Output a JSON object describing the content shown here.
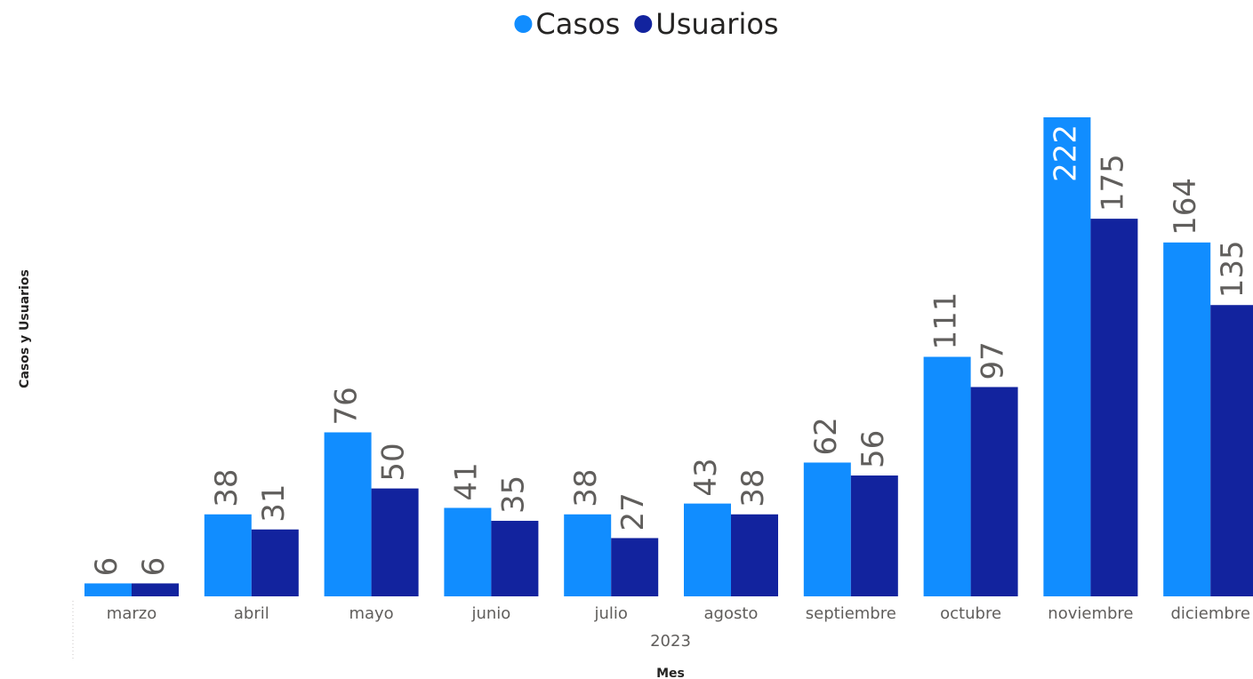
{
  "chart_data": {
    "type": "bar",
    "legend": "top",
    "categories": [
      "marzo",
      "abril",
      "mayo",
      "junio",
      "julio",
      "agosto",
      "septiembre",
      "octubre",
      "noviembre",
      "diciembre"
    ],
    "group_label": "2023",
    "x_label": "Mes",
    "y_label": "Casos y Usuarios",
    "series": [
      {
        "name": "Casos",
        "color": "#118dff",
        "values": [
          6,
          38,
          76,
          41,
          38,
          43,
          62,
          111,
          222,
          164
        ]
      },
      {
        "name": "Usuarios",
        "color": "#12239e",
        "values": [
          6,
          31,
          50,
          35,
          27,
          38,
          56,
          97,
          175,
          135
        ]
      }
    ]
  }
}
